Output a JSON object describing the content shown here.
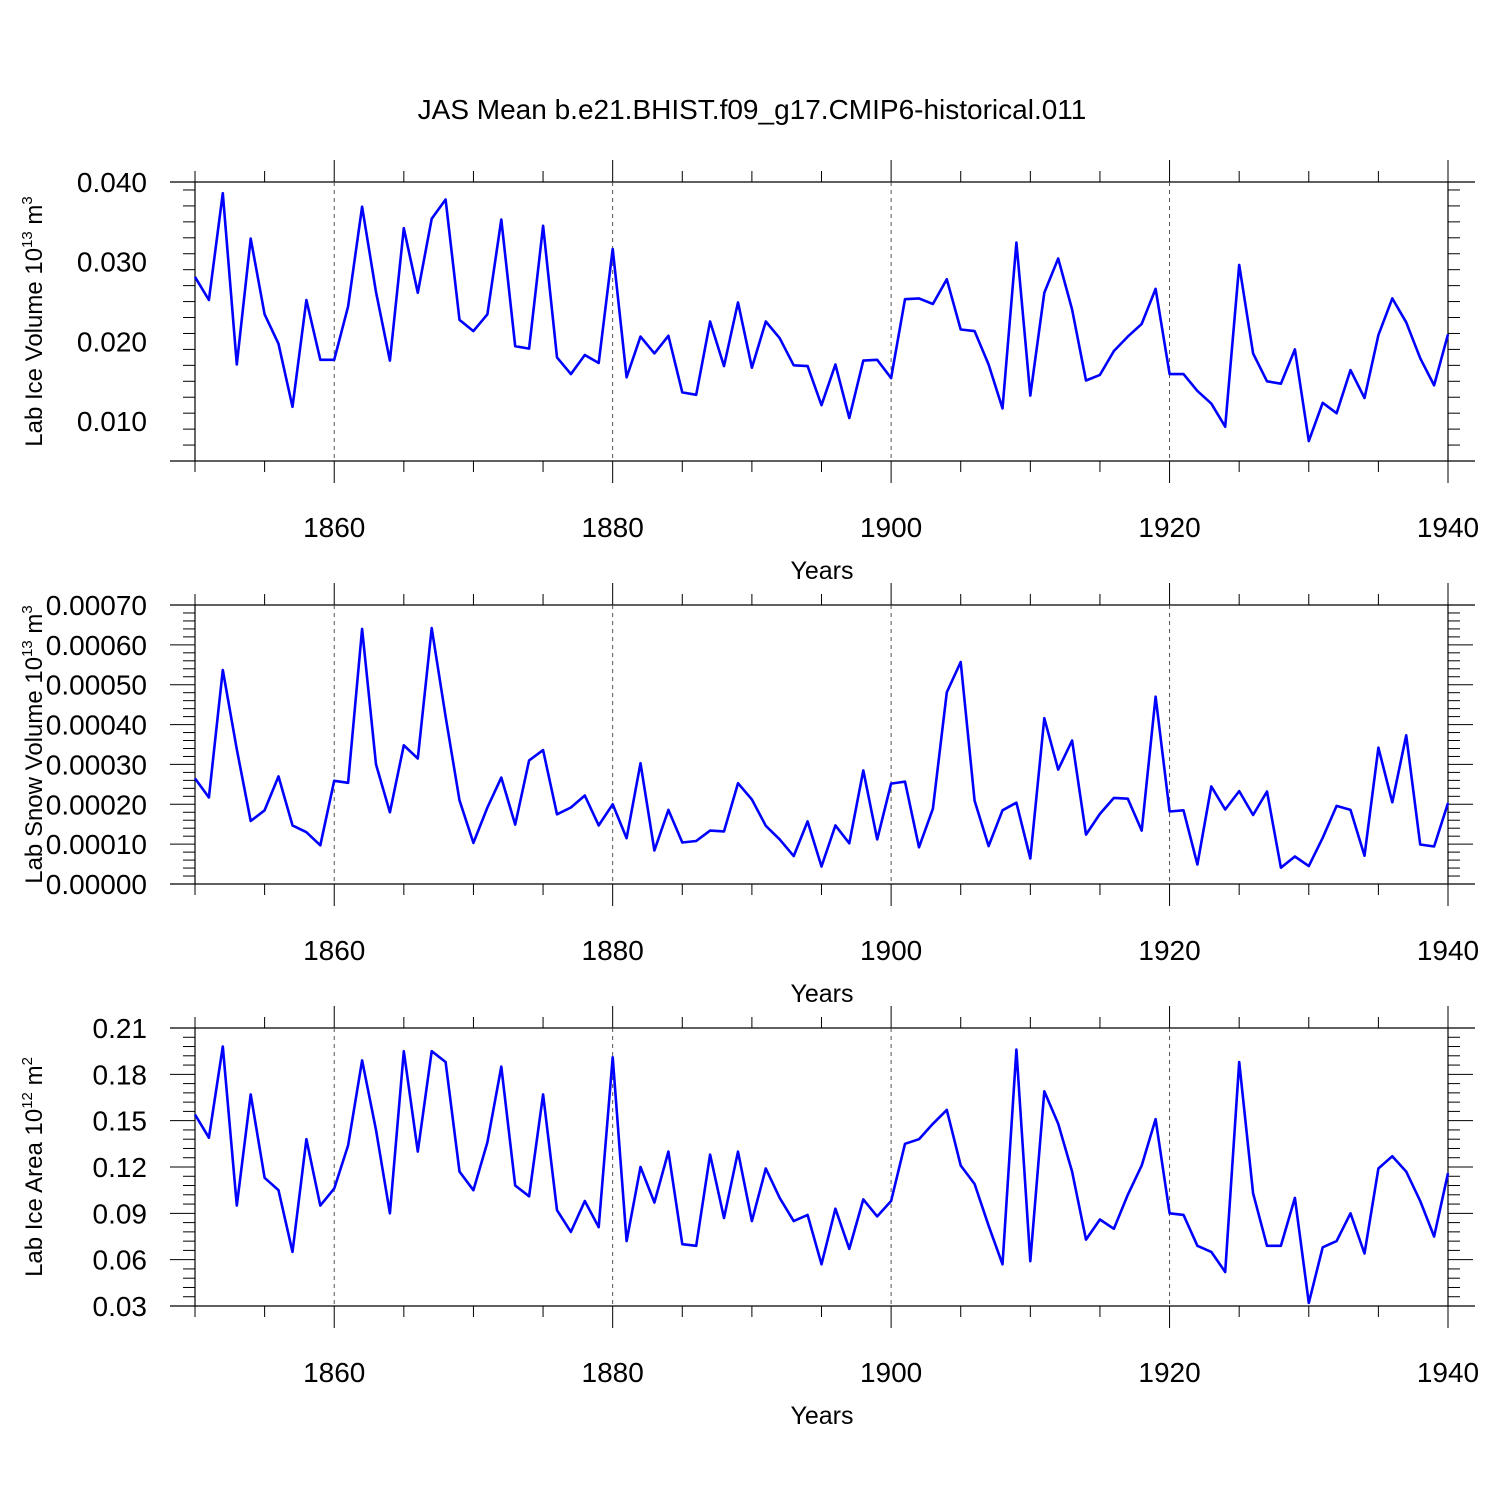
{
  "title": "JAS Mean b.e21.BHIST.f09_g17.CMIP6-historical.011",
  "line_color": "#0000ff",
  "chart_data": [
    {
      "type": "line",
      "ylabel": "Lab Ice Volume 10",
      "ylabel_exp": "13",
      "ylabel_unit": " m",
      "ylabel_unit_exp": "3",
      "xlabel": "Years",
      "xlim": [
        1850,
        1940
      ],
      "ylim": [
        0.005,
        0.04
      ],
      "yticks": [
        0.01,
        0.02,
        0.03,
        0.04
      ],
      "ytick_labels": [
        "0.010",
        "0.020",
        "0.030",
        "0.040"
      ],
      "xticks": [
        1860,
        1880,
        1900,
        1920,
        1940
      ],
      "xtick_labels": [
        "1860",
        "1880",
        "1900",
        "1920",
        "1940"
      ],
      "grid": "dashed vertical at major x ticks",
      "x_start": 1850,
      "values": [
        0.0281,
        0.0252,
        0.0386,
        0.0171,
        0.0329,
        0.0234,
        0.0197,
        0.0118,
        0.0252,
        0.0177,
        0.0177,
        0.0244,
        0.0369,
        0.0262,
        0.0176,
        0.0342,
        0.0261,
        0.0354,
        0.0378,
        0.0227,
        0.0213,
        0.0234,
        0.0353,
        0.0194,
        0.0191,
        0.0345,
        0.018,
        0.0159,
        0.0183,
        0.0173,
        0.0316,
        0.0155,
        0.0206,
        0.0185,
        0.0207,
        0.0136,
        0.0133,
        0.0225,
        0.0169,
        0.0249,
        0.0167,
        0.0225,
        0.0204,
        0.017,
        0.0169,
        0.012,
        0.0171,
        0.0104,
        0.0176,
        0.0177,
        0.0154,
        0.0253,
        0.0254,
        0.0247,
        0.0278,
        0.0215,
        0.0213,
        0.0171,
        0.0116,
        0.0324,
        0.0132,
        0.0261,
        0.0304,
        0.024,
        0.0151,
        0.0158,
        0.0188,
        0.0206,
        0.0222,
        0.0266,
        0.0159,
        0.0159,
        0.0138,
        0.0122,
        0.0093,
        0.0296,
        0.0185,
        0.015,
        0.0147,
        0.019,
        0.0075,
        0.0123,
        0.011,
        0.0164,
        0.0129,
        0.0208,
        0.0254,
        0.0224,
        0.0179,
        0.0145,
        0.0209
      ]
    },
    {
      "type": "line",
      "ylabel": "Lab Snow Volume 10",
      "ylabel_exp": "13",
      "ylabel_unit": " m",
      "ylabel_unit_exp": "3",
      "xlabel": "Years",
      "xlim": [
        1850,
        1940
      ],
      "ylim": [
        0.0,
        0.0007
      ],
      "yticks": [
        0.0,
        0.0001,
        0.0002,
        0.0003,
        0.0004,
        0.0005,
        0.0006,
        0.0007
      ],
      "ytick_labels": [
        "0.00000",
        "0.00010",
        "0.00020",
        "0.00030",
        "0.00040",
        "0.00050",
        "0.00060",
        "0.00070"
      ],
      "xticks": [
        1860,
        1880,
        1900,
        1920,
        1940
      ],
      "xtick_labels": [
        "1860",
        "1880",
        "1900",
        "1920",
        "1940"
      ],
      "grid": "dashed vertical at major x ticks",
      "x_start": 1850,
      "values": [
        0.000265,
        0.000217,
        0.000537,
        0.000338,
        0.000158,
        0.000185,
        0.00027,
        0.000147,
        0.00013,
        9.7e-05,
        0.000259,
        0.000254,
        0.00064,
        0.0003,
        0.00018,
        0.000348,
        0.000315,
        0.000642,
        0.00042,
        0.00021,
        0.000103,
        0.000192,
        0.000267,
        0.000149,
        0.00031,
        0.000336,
        0.000175,
        0.000192,
        0.000222,
        0.000147,
        0.0002,
        0.000115,
        0.000303,
        8.4e-05,
        0.000186,
        0.000104,
        0.000108,
        0.000134,
        0.000132,
        0.000253,
        0.000212,
        0.000146,
        0.000112,
        7e-05,
        0.000157,
        4.4e-05,
        0.000147,
        0.000102,
        0.000285,
        0.000112,
        0.000252,
        0.000257,
        9.2e-05,
        0.000189,
        0.000481,
        0.000557,
        0.000209,
        9.5e-05,
        0.000185,
        0.000204,
        6.4e-05,
        0.000416,
        0.000287,
        0.00036,
        0.000124,
        0.000176,
        0.000216,
        0.000214,
        0.000134,
        0.00047,
        0.000182,
        0.000185,
        4.9e-05,
        0.000245,
        0.000187,
        0.000233,
        0.000173,
        0.000232,
        4.1e-05,
        6.9e-05,
        4.5e-05,
        0.000116,
        0.000196,
        0.000186,
        7.1e-05,
        0.000342,
        0.000205,
        0.000373,
        9.9e-05,
        9.4e-05,
        0.000203
      ]
    },
    {
      "type": "line",
      "ylabel": "Lab Ice Area 10",
      "ylabel_exp": "12",
      "ylabel_unit": " m",
      "ylabel_unit_exp": "2",
      "xlabel": "Years",
      "xlim": [
        1850,
        1940
      ],
      "ylim": [
        0.03,
        0.21
      ],
      "yticks": [
        0.03,
        0.06,
        0.09,
        0.12,
        0.15,
        0.18,
        0.21
      ],
      "ytick_labels": [
        "0.03",
        "0.06",
        "0.09",
        "0.12",
        "0.15",
        "0.18",
        "0.21"
      ],
      "xticks": [
        1860,
        1880,
        1900,
        1920,
        1940
      ],
      "xtick_labels": [
        "1860",
        "1880",
        "1900",
        "1920",
        "1940"
      ],
      "grid": "dashed vertical at major x ticks",
      "x_start": 1850,
      "values": [
        0.154,
        0.139,
        0.198,
        0.095,
        0.167,
        0.113,
        0.105,
        0.065,
        0.138,
        0.095,
        0.106,
        0.134,
        0.189,
        0.144,
        0.09,
        0.195,
        0.13,
        0.195,
        0.188,
        0.117,
        0.105,
        0.136,
        0.185,
        0.108,
        0.101,
        0.167,
        0.092,
        0.078,
        0.098,
        0.081,
        0.191,
        0.072,
        0.12,
        0.097,
        0.13,
        0.07,
        0.069,
        0.128,
        0.087,
        0.13,
        0.085,
        0.119,
        0.1,
        0.085,
        0.089,
        0.057,
        0.093,
        0.067,
        0.099,
        0.088,
        0.098,
        0.135,
        0.138,
        0.148,
        0.157,
        0.121,
        0.109,
        0.082,
        0.057,
        0.196,
        0.059,
        0.169,
        0.148,
        0.117,
        0.073,
        0.086,
        0.08,
        0.102,
        0.121,
        0.151,
        0.09,
        0.089,
        0.069,
        0.065,
        0.052,
        0.188,
        0.103,
        0.069,
        0.069,
        0.1,
        0.032,
        0.068,
        0.072,
        0.09,
        0.064,
        0.119,
        0.127,
        0.117,
        0.098,
        0.075,
        0.116
      ]
    }
  ]
}
